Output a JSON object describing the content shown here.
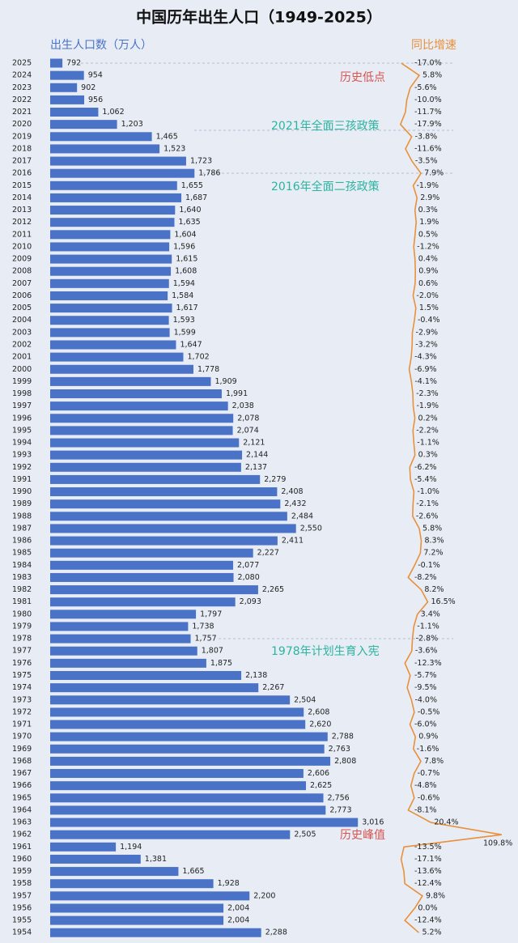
{
  "chart_data": {
    "type": "bar",
    "orientation": "horizontal",
    "title": "中国历年出生人口（1949-2025）",
    "categories": [
      "2025",
      "2024",
      "2023",
      "2022",
      "2021",
      "2020",
      "2019",
      "2018",
      "2017",
      "2016",
      "2015",
      "2014",
      "2013",
      "2012",
      "2011",
      "2010",
      "2009",
      "2008",
      "2007",
      "2006",
      "2005",
      "2004",
      "2003",
      "2002",
      "2001",
      "2000",
      "1999",
      "1998",
      "1997",
      "1996",
      "1995",
      "1994",
      "1993",
      "1992",
      "1991",
      "1990",
      "1989",
      "1988",
      "1987",
      "1986",
      "1985",
      "1984",
      "1983",
      "1982",
      "1981",
      "1980",
      "1979",
      "1978",
      "1977",
      "1976",
      "1975",
      "1974",
      "1973",
      "1972",
      "1971",
      "1970",
      "1969",
      "1968",
      "1967",
      "1966",
      "1965",
      "1964",
      "1963",
      "1962",
      "1961",
      "1960",
      "1959",
      "1958",
      "1957",
      "1956",
      "1955",
      "1954"
    ],
    "series": [
      {
        "name": "出生人口数（万人）",
        "color": "#4a72c6",
        "values": [
          792,
          954,
          902,
          956,
          1062,
          1203,
          1465,
          1523,
          1723,
          1786,
          1655,
          1687,
          1640,
          1635,
          1604,
          1596,
          1615,
          1608,
          1594,
          1584,
          1617,
          1593,
          1599,
          1647,
          1702,
          1778,
          1909,
          1991,
          2038,
          2078,
          2074,
          2121,
          2144,
          2137,
          2279,
          2408,
          2432,
          2484,
          2550,
          2411,
          2227,
          2077,
          2080,
          2265,
          2093,
          1797,
          1738,
          1757,
          1807,
          1875,
          2138,
          2267,
          2504,
          2608,
          2620,
          2788,
          2763,
          2808,
          2606,
          2625,
          2756,
          2773,
          3016,
          2505,
          1194,
          1381,
          1665,
          1928,
          2200,
          2004,
          2004,
          2288
        ],
        "value_labels": [
          "792",
          "954",
          "902",
          "956",
          "1,062",
          "1,203",
          "1,465",
          "1,523",
          "1,723",
          "1,786",
          "1,655",
          "1,687",
          "1,640",
          "1,635",
          "1,604",
          "1,596",
          "1,615",
          "1,608",
          "1,594",
          "1,584",
          "1,617",
          "1,593",
          "1,599",
          "1,647",
          "1,702",
          "1,778",
          "1,909",
          "1,991",
          "2,038",
          "2,078",
          "2,074",
          "2,121",
          "2,144",
          "2,137",
          "2,279",
          "2,408",
          "2,432",
          "2,484",
          "2,550",
          "2,411",
          "2,227",
          "2,077",
          "2,080",
          "2,265",
          "2,093",
          "1,797",
          "1,738",
          "1,757",
          "1,807",
          "1,875",
          "2,138",
          "2,267",
          "2,504",
          "2,608",
          "2,620",
          "2,788",
          "2,763",
          "2,808",
          "2,606",
          "2,625",
          "2,756",
          "2,773",
          "3,016",
          "2,505",
          "1,194",
          "1,381",
          "1,665",
          "1,928",
          "2,200",
          "2,004",
          "2,004",
          "2,288"
        ]
      },
      {
        "name": "同比增速",
        "color": "#e8903a",
        "type": "line",
        "axis": "x2",
        "values": [
          -17.0,
          5.8,
          -5.6,
          -10.0,
          -11.7,
          -17.9,
          -3.8,
          -11.6,
          -3.5,
          7.9,
          -1.9,
          2.9,
          0.3,
          1.9,
          0.5,
          -1.2,
          0.4,
          0.9,
          0.6,
          -2.0,
          1.5,
          -0.4,
          -2.9,
          -3.2,
          -4.3,
          -6.9,
          -4.1,
          -2.3,
          -1.9,
          0.2,
          -2.2,
          -1.1,
          0.3,
          -6.2,
          -5.4,
          -1.0,
          -2.1,
          -2.6,
          5.8,
          8.3,
          7.2,
          -0.1,
          -8.2,
          8.2,
          16.5,
          3.4,
          -1.1,
          -2.8,
          -3.6,
          -12.3,
          -5.7,
          -9.5,
          -4.0,
          -0.5,
          -6.0,
          0.9,
          -1.6,
          7.8,
          -0.7,
          -4.8,
          -0.6,
          -8.1,
          20.4,
          109.8,
          -13.5,
          -17.1,
          -13.6,
          -12.4,
          9.8,
          0.0,
          -12.4,
          5.2
        ],
        "value_labels": [
          "-17.0%",
          "5.8%",
          "-5.6%",
          "-10.0%",
          "-11.7%",
          "-17.9%",
          "-3.8%",
          "-11.6%",
          "-3.5%",
          "7.9%",
          "-1.9%",
          "2.9%",
          "0.3%",
          "1.9%",
          "0.5%",
          "-1.2%",
          "0.4%",
          "0.9%",
          "0.6%",
          "-2.0%",
          "1.5%",
          "-0.4%",
          "-2.9%",
          "-3.2%",
          "-4.3%",
          "-6.9%",
          "-4.1%",
          "-2.3%",
          "-1.9%",
          "0.2%",
          "-2.2%",
          "-1.1%",
          "0.3%",
          "-6.2%",
          "-5.4%",
          "-1.0%",
          "-2.1%",
          "-2.6%",
          "5.8%",
          "8.3%",
          "7.2%",
          "-0.1%",
          "-8.2%",
          "8.2%",
          "16.5%",
          "3.4%",
          "-1.1%",
          "-2.8%",
          "-3.6%",
          "-12.3%",
          "-5.7%",
          "-9.5%",
          "-4.0%",
          "-0.5%",
          "-6.0%",
          "0.9%",
          "-1.6%",
          "7.8%",
          "-0.7%",
          "-4.8%",
          "-0.6%",
          "-8.1%",
          "20.4%",
          "109.8%",
          "-13.5%",
          "-17.1%",
          "-13.6%",
          "-12.4%",
          "9.8%",
          "0.0%",
          "-12.4%",
          "5.2%"
        ]
      }
    ],
    "xlim": [
      700,
      3100
    ],
    "x2lim": [
      -30,
      110
    ],
    "annotations": [
      "历史低点",
      "2021年全面三孩政策",
      "2016年全面二孩政策",
      "1978年计划生育入宪",
      "历史峰值"
    ]
  }
}
